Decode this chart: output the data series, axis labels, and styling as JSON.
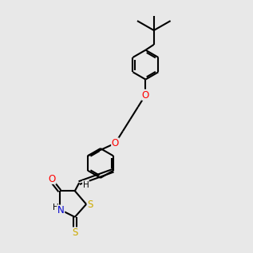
{
  "background_color": "#e8e8e8",
  "line_color": "#000000",
  "bond_width": 1.5,
  "atom_colors": {
    "O": "#ff0000",
    "N": "#0000cd",
    "S": "#ccaa00",
    "H": "#000000"
  },
  "font_size_atom": 8.5
}
